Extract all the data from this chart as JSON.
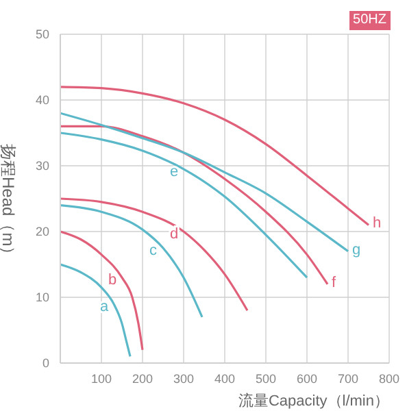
{
  "chart_data": {
    "type": "line",
    "xlabel": "流量Capacity（l/min）",
    "ylabel": "扬程Head（m）",
    "annotations": [
      "50HZ"
    ],
    "xlim": [
      0,
      800
    ],
    "xticks": [
      {
        "value": 0,
        "label": null
      },
      100,
      200,
      300,
      400,
      500,
      600,
      700,
      800
    ],
    "ylim": [
      0,
      50
    ],
    "yticks": [
      0,
      10,
      20,
      30,
      40,
      50
    ],
    "grid": true,
    "legend": false,
    "marker": "none",
    "line_style": "solid",
    "series": [
      {
        "name": "a",
        "color": "#5bb8c9",
        "x": [
          0,
          50,
          100,
          130,
          150,
          160,
          170
        ],
        "values": [
          15,
          13.8,
          11.5,
          9,
          6,
          3.5,
          1
        ]
      },
      {
        "name": "b",
        "color": "#e0607a",
        "x": [
          0,
          50,
          100,
          150,
          175,
          190,
          200
        ],
        "values": [
          20,
          18.8,
          16.5,
          13,
          10,
          6,
          2
        ]
      },
      {
        "name": "c",
        "color": "#5bb8c9",
        "x": [
          0,
          100,
          200,
          250,
          300,
          345
        ],
        "values": [
          24,
          23,
          20.3,
          17.5,
          13,
          7
        ]
      },
      {
        "name": "d",
        "color": "#e0607a",
        "x": [
          0,
          100,
          200,
          300,
          350,
          400,
          455
        ],
        "values": [
          25,
          24.5,
          23,
          20,
          17.2,
          13.5,
          8
        ]
      },
      {
        "name": "e",
        "color": "#5bb8c9",
        "x": [
          0,
          100,
          200,
          300,
          400,
          500,
          600
        ],
        "values": [
          35,
          34,
          32.3,
          29.5,
          25.3,
          19.5,
          13
        ]
      },
      {
        "name": "f",
        "color": "#e0607a",
        "x": [
          0,
          100,
          200,
          300,
          400,
          500,
          600,
          650
        ],
        "values": [
          36,
          36,
          34.5,
          32,
          28,
          23,
          16.5,
          12
        ]
      },
      {
        "name": "g",
        "color": "#5bb8c9",
        "x": [
          0,
          100,
          200,
          300,
          400,
          500,
          600,
          700
        ],
        "values": [
          38,
          36.2,
          34.2,
          32,
          29,
          25.8,
          21.5,
          17
        ]
      },
      {
        "name": "h",
        "color": "#e0607a",
        "x": [
          0,
          100,
          200,
          300,
          400,
          500,
          600,
          700,
          750
        ],
        "values": [
          42,
          41.8,
          41,
          39.5,
          37,
          33.3,
          28.5,
          23.5,
          21
        ]
      }
    ]
  }
}
